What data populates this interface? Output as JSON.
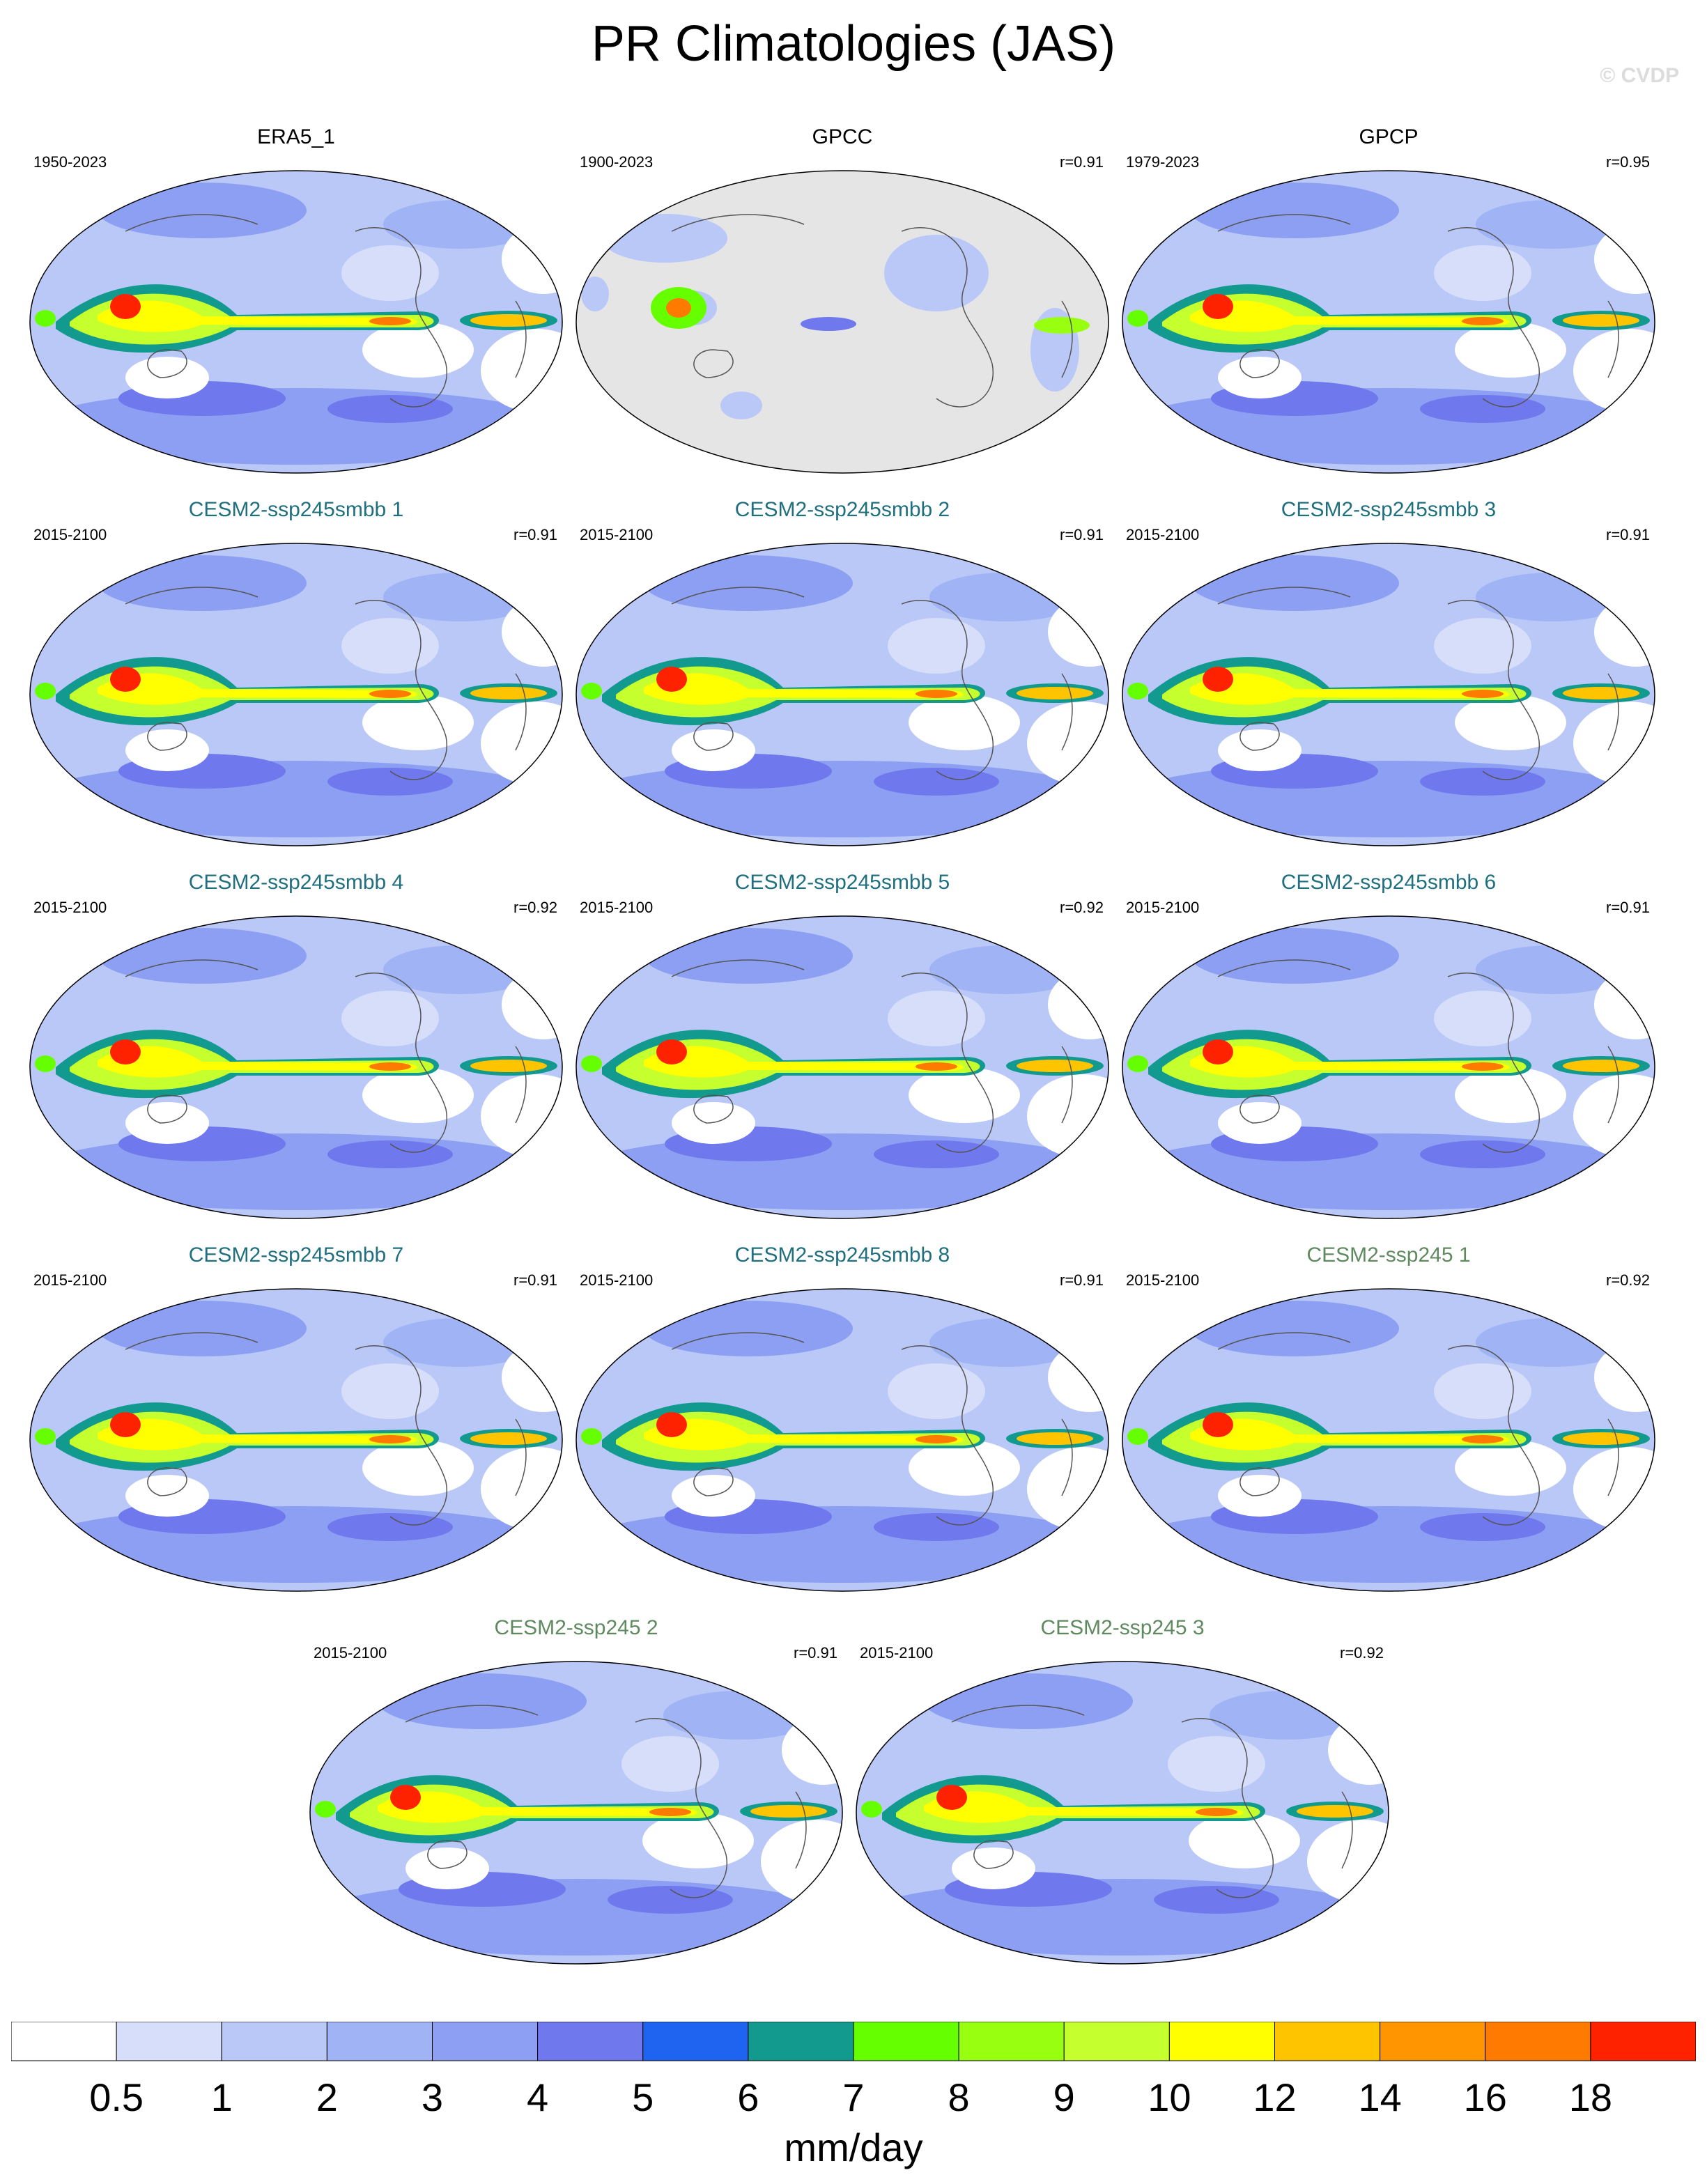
{
  "figure": {
    "title": "PR Climatologies (JAS)",
    "watermark": "© CVDP",
    "units": "mm/day"
  },
  "colors": {
    "observed_title": "#000000",
    "smbb_title": "#1f6f7f",
    "ssp245_title": "#5f8a5f",
    "land_mask": "#e5e5e5",
    "ocean_background": "#ffffff"
  },
  "panels": [
    {
      "title": "ERA5_1",
      "years": "1950-2023",
      "r": "",
      "group": "observed",
      "masked": false
    },
    {
      "title": "GPCC",
      "years": "1900-2023",
      "r": "r=0.91",
      "group": "observed",
      "masked": true
    },
    {
      "title": "GPCP",
      "years": "1979-2023",
      "r": "r=0.95",
      "group": "observed",
      "masked": false
    },
    {
      "title": "CESM2-ssp245smbb 1",
      "years": "2015-2100",
      "r": "r=0.91",
      "group": "smbb",
      "masked": false
    },
    {
      "title": "CESM2-ssp245smbb 2",
      "years": "2015-2100",
      "r": "r=0.91",
      "group": "smbb",
      "masked": false
    },
    {
      "title": "CESM2-ssp245smbb 3",
      "years": "2015-2100",
      "r": "r=0.91",
      "group": "smbb",
      "masked": false
    },
    {
      "title": "CESM2-ssp245smbb 4",
      "years": "2015-2100",
      "r": "r=0.92",
      "group": "smbb",
      "masked": false
    },
    {
      "title": "CESM2-ssp245smbb 5",
      "years": "2015-2100",
      "r": "r=0.92",
      "group": "smbb",
      "masked": false
    },
    {
      "title": "CESM2-ssp245smbb 6",
      "years": "2015-2100",
      "r": "r=0.91",
      "group": "smbb",
      "masked": false
    },
    {
      "title": "CESM2-ssp245smbb 7",
      "years": "2015-2100",
      "r": "r=0.91",
      "group": "smbb",
      "masked": false
    },
    {
      "title": "CESM2-ssp245smbb 8",
      "years": "2015-2100",
      "r": "r=0.91",
      "group": "smbb",
      "masked": false
    },
    {
      "title": "CESM2-ssp245 1",
      "years": "2015-2100",
      "r": "r=0.92",
      "group": "ssp245",
      "masked": false
    },
    {
      "title": "CESM2-ssp245 2",
      "years": "2015-2100",
      "r": "r=0.91",
      "group": "ssp245",
      "masked": false
    },
    {
      "title": "CESM2-ssp245 3",
      "years": "2015-2100",
      "r": "r=0.92",
      "group": "ssp245",
      "masked": false
    }
  ],
  "colorbar": {
    "labels": [
      "0.5",
      "1",
      "2",
      "3",
      "4",
      "5",
      "6",
      "7",
      "8",
      "9",
      "10",
      "12",
      "14",
      "16",
      "18"
    ],
    "colors": [
      "#ffffff",
      "#d6defa",
      "#bac8f8",
      "#9fb3f5",
      "#8c9ff2",
      "#6f78ec",
      "#1f64f0",
      "#129a8f",
      "#66ff00",
      "#99ff11",
      "#c6ff2e",
      "#ffff00",
      "#ffc400",
      "#ff9500",
      "#ff7a00",
      "#ff2200"
    ]
  }
}
